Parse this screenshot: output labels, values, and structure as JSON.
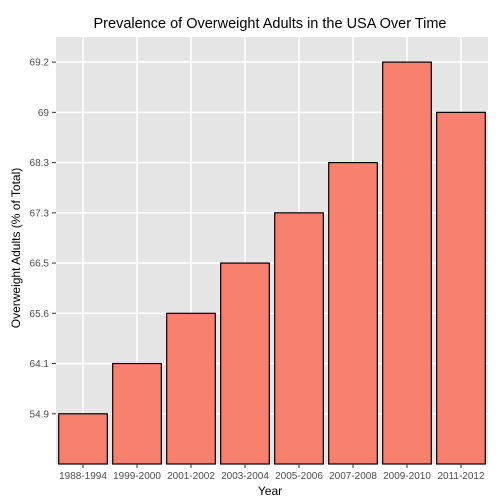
{
  "chart_data": {
    "type": "bar",
    "title": "Prevalence of Overweight Adults in the USA Over Time",
    "xlabel": "Year",
    "ylabel": "Overweight Adults (% of Total)",
    "categories": [
      "1988-1994",
      "1999-2000",
      "2001-2002",
      "2003-2004",
      "2005-2006",
      "2007-2008",
      "2009-2010",
      "2011-2012"
    ],
    "values": [
      "54.9",
      "64.1",
      "65.6",
      "66.5",
      "67.3",
      "68.3",
      "69.2",
      "69"
    ],
    "y_axis_type": "discrete",
    "y_ticks": [
      "54.9",
      "64.1",
      "65.6",
      "66.5",
      "67.3",
      "68.3",
      "69",
      "69.2"
    ],
    "grid": true,
    "colors": {
      "panel": "#e5e5e5",
      "grid": "#ffffff",
      "bar_fill": "#f8806f",
      "bar_stroke": "#000000"
    }
  }
}
